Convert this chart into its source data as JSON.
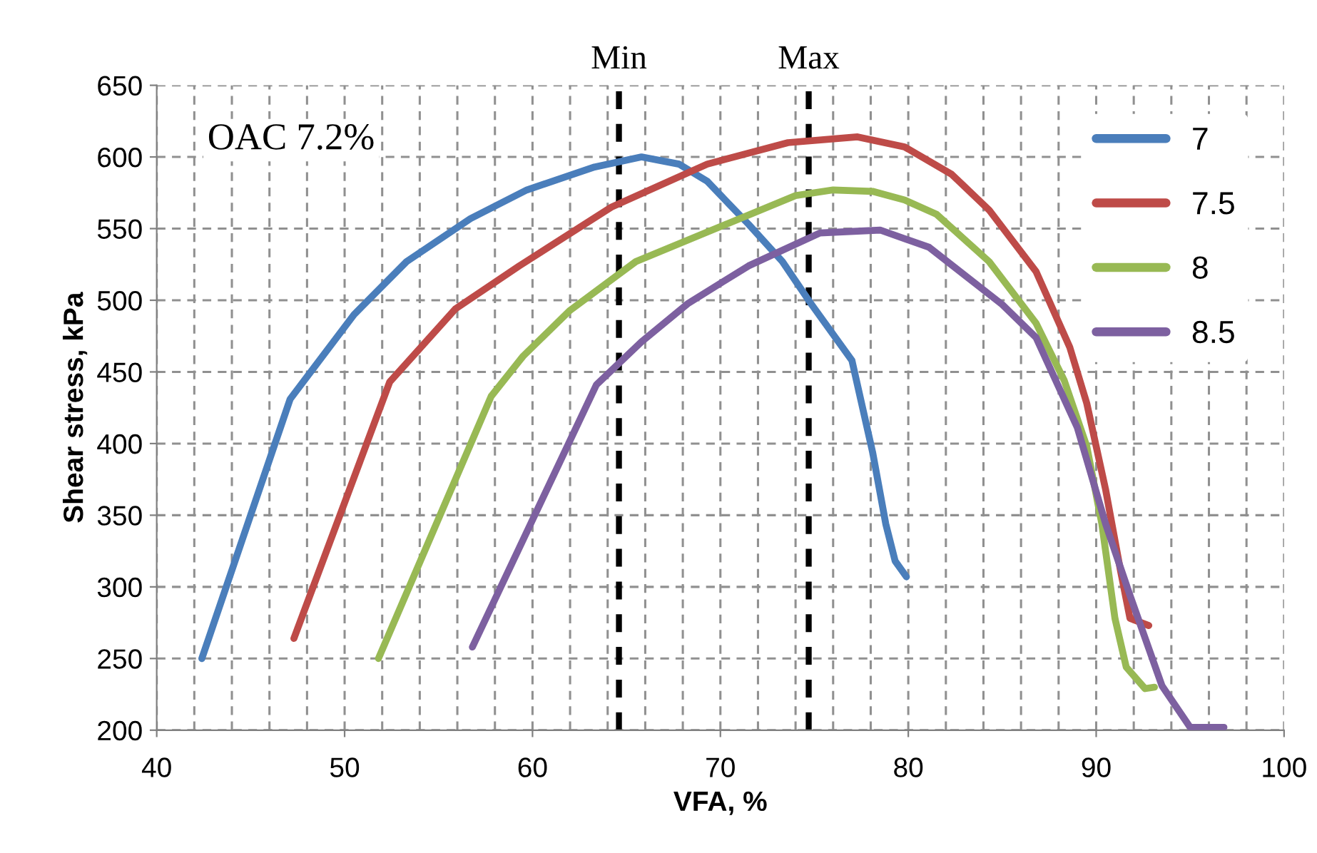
{
  "chart_data": {
    "type": "line",
    "xlabel": "VFA, %",
    "ylabel": "Shear stress, kPa",
    "xlim": [
      40,
      100
    ],
    "ylim": [
      200,
      650
    ],
    "xticks": [
      40,
      {
        "value": 42,
        "label": null
      },
      {
        "value": 44,
        "label": null
      },
      {
        "value": 46,
        "label": null
      },
      {
        "value": 48,
        "label": null
      },
      50,
      {
        "value": 52,
        "label": null
      },
      {
        "value": 54,
        "label": null
      },
      {
        "value": 56,
        "label": null
      },
      {
        "value": 58,
        "label": null
      },
      60,
      {
        "value": 62,
        "label": null
      },
      {
        "value": 64,
        "label": null
      },
      {
        "value": 66,
        "label": null
      },
      {
        "value": 68,
        "label": null
      },
      70,
      {
        "value": 72,
        "label": null
      },
      {
        "value": 74,
        "label": null
      },
      {
        "value": 76,
        "label": null
      },
      {
        "value": 78,
        "label": null
      },
      80,
      {
        "value": 82,
        "label": null
      },
      {
        "value": 84,
        "label": null
      },
      {
        "value": 86,
        "label": null
      },
      {
        "value": 88,
        "label": null
      },
      90,
      {
        "value": 92,
        "label": null
      },
      {
        "value": 94,
        "label": null
      },
      {
        "value": 96,
        "label": null
      },
      {
        "value": 98,
        "label": null
      },
      100
    ],
    "yticks": [
      200,
      250,
      300,
      350,
      400,
      450,
      500,
      550,
      600,
      650
    ],
    "grid": true,
    "legend": "top right",
    "marker": "none",
    "line_style": "solid",
    "annotations": [
      "OAC 7.2%"
    ],
    "ref_lines": [
      {
        "axis": "x",
        "value": 64.6,
        "label": "Min",
        "color": "#000000",
        "line_style": "dashed"
      },
      {
        "axis": "x",
        "value": 74.7,
        "label": "Max",
        "color": "#000000",
        "line_style": "dashed"
      }
    ],
    "series": [
      {
        "name": "7",
        "color": "#4a7ebb",
        "x": [
          42.4,
          47.1,
          50.5,
          53.3,
          56.7,
          59.7,
          63.3,
          65.8,
          67.8,
          69.3,
          71.5,
          73.3,
          74.8,
          77.0,
          78.1,
          78.8,
          79.3,
          79.9
        ],
        "values": [
          250,
          431,
          490,
          527,
          557,
          577,
          593,
          600,
          595,
          583,
          553,
          527,
          498,
          458,
          394,
          344,
          318,
          307
        ]
      },
      {
        "name": "7.5",
        "color": "#be4b48",
        "x": [
          47.3,
          52.4,
          55.9,
          59.3,
          64.2,
          69.3,
          73.6,
          77.3,
          79.8,
          82.3,
          84.3,
          86.8,
          88.6,
          89.5,
          90.5,
          91.3,
          91.8,
          92.8
        ],
        "values": [
          264,
          443,
          494,
          524,
          565,
          595,
          610,
          614,
          607,
          588,
          563,
          520,
          467,
          428,
          368,
          311,
          278,
          273
        ]
      },
      {
        "name": "8",
        "color": "#98b954",
        "x": [
          51.8,
          57.8,
          59.5,
          62.0,
          65.5,
          70.3,
          74.0,
          76.0,
          78.1,
          79.8,
          81.5,
          84.3,
          86.8,
          88.3,
          89.5,
          90.3,
          91.0,
          91.6,
          92.6,
          93.1
        ],
        "values": [
          250,
          433,
          461,
          493,
          527,
          553,
          573,
          577,
          576,
          570,
          560,
          527,
          484,
          444,
          398,
          344,
          278,
          244,
          229,
          230
        ]
      },
      {
        "name": "8.5",
        "color": "#7d60a0",
        "x": [
          56.8,
          63.4,
          65.8,
          68.3,
          71.5,
          75.3,
          78.5,
          81.1,
          85.0,
          86.8,
          89.0,
          90.5,
          91.8,
          93.5,
          95.0,
          96.8
        ],
        "values": [
          258,
          441,
          471,
          498,
          524,
          547,
          549,
          537,
          497,
          474,
          411,
          344,
          294,
          231,
          202,
          202
        ]
      }
    ]
  }
}
